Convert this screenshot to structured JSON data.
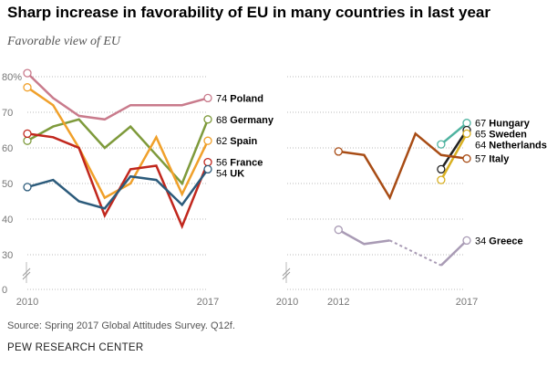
{
  "title": "Sharp increase in favorability of EU in many countries in last year",
  "subtitle": "Favorable view of EU",
  "source": "Source: Spring 2017 Global Attitudes Survey. Q12f.",
  "org": "PEW RESEARCH CENTER",
  "chart_data": [
    {
      "type": "line",
      "x": [
        2010,
        2011,
        2012,
        2013,
        2014,
        2015,
        2016,
        2017
      ],
      "xticks": [
        "2010",
        "2017"
      ],
      "yticks": [
        "80%",
        "70",
        "60",
        "50",
        "40",
        "30",
        "0"
      ],
      "ylim": [
        0,
        80
      ],
      "axis_break": true,
      "grid": true,
      "series": [
        {
          "name": "Poland",
          "color": "#c97b8c",
          "values": [
            81,
            74,
            69,
            68,
            72,
            72,
            72,
            74
          ],
          "end_label": "74"
        },
        {
          "name": "Germany",
          "color": "#7e9a3b",
          "values": [
            62,
            66,
            68,
            60,
            66,
            58,
            50,
            68
          ],
          "end_label": "68"
        },
        {
          "name": "Spain",
          "color": "#f0a02a",
          "values": [
            77,
            72,
            60,
            46,
            50,
            63,
            47,
            62
          ],
          "end_label": "62"
        },
        {
          "name": "France",
          "color": "#c1271d",
          "values": [
            64,
            63,
            60,
            41,
            54,
            55,
            38,
            56
          ],
          "end_label": "56"
        },
        {
          "name": "UK",
          "color": "#2c5b7b",
          "values": [
            49,
            51,
            45,
            43,
            52,
            51,
            44,
            54
          ],
          "end_label": "54"
        }
      ]
    },
    {
      "type": "line",
      "x": [
        2010,
        2011,
        2012,
        2013,
        2014,
        2015,
        2016,
        2017
      ],
      "xticks": [
        "2010",
        "2012",
        "2017"
      ],
      "ylim": [
        0,
        80
      ],
      "axis_break": true,
      "grid": true,
      "series": [
        {
          "name": "Hungary",
          "color": "#4fb3a0",
          "values": [
            null,
            null,
            null,
            null,
            null,
            null,
            61,
            67
          ],
          "end_label": "67"
        },
        {
          "name": "Sweden",
          "color": "#222222",
          "values": [
            null,
            null,
            null,
            null,
            null,
            null,
            54,
            65
          ],
          "end_label": "65"
        },
        {
          "name": "Netherlands",
          "color": "#d9b021",
          "values": [
            null,
            null,
            null,
            null,
            null,
            null,
            51,
            64
          ],
          "end_label": "64"
        },
        {
          "name": "Italy",
          "color": "#a84c15",
          "values": [
            null,
            null,
            59,
            58,
            46,
            64,
            58,
            57
          ],
          "end_label": "57"
        },
        {
          "name": "Greece",
          "color": "#a99bb5",
          "values": [
            null,
            null,
            37,
            33,
            34,
            null,
            27,
            34
          ],
          "end_label": "34",
          "dashed_gap": [
            2014,
            2016
          ]
        }
      ]
    }
  ]
}
